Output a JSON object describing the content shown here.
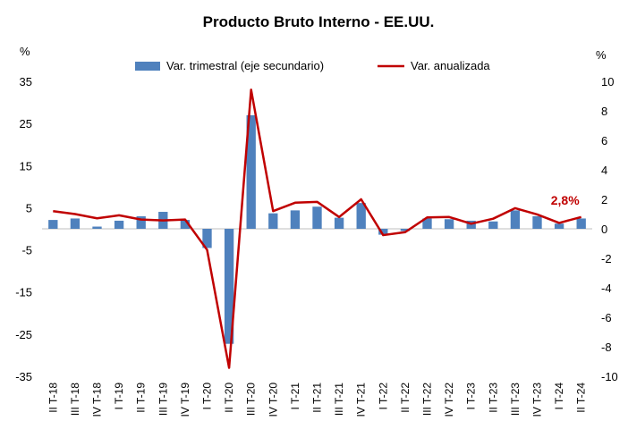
{
  "chart_data": {
    "type": "bar+line",
    "title": "Producto Bruto Interno - EE.UU.",
    "left_axis_unit": "%",
    "right_axis_unit": "%",
    "left_axis": {
      "min": -35,
      "max": 35,
      "ticks": [
        35,
        25,
        15,
        5,
        -5,
        -15,
        -25,
        -35
      ]
    },
    "right_axis": {
      "min": -10,
      "max": 10,
      "ticks": [
        10,
        8,
        6,
        4,
        2,
        0,
        -2,
        -4,
        -6,
        -8,
        -10
      ]
    },
    "categories": [
      "II T-18",
      "III T-18",
      "IV T-18",
      "I T-19",
      "II T-19",
      "III T-19",
      "IV T-19",
      "I T-20",
      "II T-20",
      "III T-20",
      "IV T-20",
      "I T-21",
      "II T-21",
      "III T-21",
      "IV T-21",
      "I T-22",
      "II T-22",
      "III T-22",
      "IV T-22",
      "I T-23",
      "II T-23",
      "III T-23",
      "IV T-23",
      "I T-24",
      "II T-24"
    ],
    "legend": {
      "position": "top",
      "bar_label": "Var. trimestral (eje secundario)",
      "line_label": "Var. anualizada"
    },
    "series": [
      {
        "name": "Var. trimestral (eje secundario)",
        "type": "bar",
        "axis": "secondary",
        "color": "#4f81bd",
        "values": [
          0.6,
          0.7,
          0.15,
          0.55,
          0.85,
          1.15,
          0.6,
          -1.3,
          -7.8,
          7.7,
          1.05,
          1.25,
          1.5,
          0.75,
          1.75,
          -0.4,
          -0.15,
          0.7,
          0.65,
          0.55,
          0.5,
          1.25,
          0.85,
          0.35,
          0.7
        ]
      },
      {
        "name": "Var. anualizada",
        "type": "line",
        "axis": "primary",
        "color": "#c00000",
        "values": [
          4.2,
          3.5,
          2.5,
          3.2,
          2.2,
          2.0,
          2.2,
          -5.0,
          -33.0,
          33.0,
          4.2,
          6.2,
          6.4,
          2.8,
          7.0,
          -1.5,
          -0.8,
          2.7,
          2.8,
          1.2,
          2.4,
          4.9,
          3.4,
          1.4,
          2.8
        ]
      }
    ],
    "annotation": {
      "text": "2,8%",
      "color": "#c00000",
      "category": "II T-24"
    }
  }
}
